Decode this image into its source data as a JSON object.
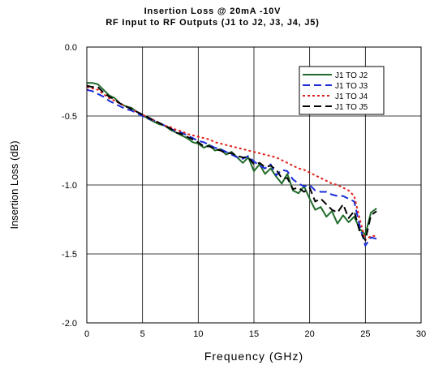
{
  "chart_data": {
    "type": "line",
    "title": "Insertion Loss @ 20mA -10V",
    "subtitle": "RF Input to RF Outputs (J1 to J2, J3, J4, J5)",
    "xlabel": "Frequency (GHz)",
    "ylabel": "Insertion Loss (dB)",
    "xlim": [
      0,
      30
    ],
    "ylim": [
      -2.0,
      0.0
    ],
    "xticks": [
      "0",
      "5",
      "10",
      "15",
      "20",
      "25",
      "30"
    ],
    "yticks": [
      "0.0",
      "-0.5",
      "-1.0",
      "-1.5",
      "-2.0"
    ],
    "grid": true,
    "legend_position": "top-right",
    "series": [
      {
        "name": "J1 TO J2",
        "color": "#1f6b2a",
        "style": "solid",
        "x": [
          0,
          0.5,
          1,
          1.5,
          2,
          2.5,
          3,
          3.5,
          4,
          4.5,
          5,
          5.5,
          6,
          6.5,
          7,
          7.5,
          8,
          8.5,
          9,
          9.5,
          10,
          10.5,
          11,
          11.5,
          12,
          12.5,
          13,
          13.5,
          14,
          14.5,
          15,
          15.5,
          16,
          16.5,
          17,
          17.5,
          18,
          18.5,
          19,
          19.5,
          20,
          20.5,
          21,
          21.5,
          22,
          22.5,
          23,
          23.5,
          24,
          24.5,
          25,
          25.5,
          26
        ],
        "y": [
          -0.26,
          -0.26,
          -0.27,
          -0.31,
          -0.35,
          -0.37,
          -0.41,
          -0.43,
          -0.44,
          -0.47,
          -0.49,
          -0.52,
          -0.54,
          -0.56,
          -0.57,
          -0.6,
          -0.62,
          -0.64,
          -0.66,
          -0.69,
          -0.7,
          -0.73,
          -0.71,
          -0.75,
          -0.74,
          -0.78,
          -0.76,
          -0.8,
          -0.84,
          -0.8,
          -0.9,
          -0.85,
          -0.92,
          -0.88,
          -0.94,
          -0.99,
          -0.92,
          -1.04,
          -1.06,
          -1.01,
          -1.1,
          -1.18,
          -1.16,
          -1.23,
          -1.19,
          -1.28,
          -1.22,
          -1.27,
          -1.23,
          -1.32,
          -1.36,
          -1.2,
          -1.17
        ]
      },
      {
        "name": "J1 TO J3",
        "color": "#1a2bd8",
        "style": "dash",
        "x": [
          0,
          0.5,
          1,
          1.5,
          2,
          2.5,
          3,
          3.5,
          4,
          4.5,
          5,
          5.5,
          6,
          6.5,
          7,
          7.5,
          8,
          8.5,
          9,
          9.5,
          10,
          10.5,
          11,
          11.5,
          12,
          12.5,
          13,
          13.5,
          14,
          14.5,
          15,
          15.5,
          16,
          16.5,
          17,
          17.5,
          18,
          18.5,
          19,
          19.5,
          20,
          20.5,
          21,
          21.5,
          22,
          22.5,
          23,
          23.5,
          24,
          24.5,
          25,
          25.5,
          26
        ],
        "y": [
          -0.31,
          -0.32,
          -0.34,
          -0.36,
          -0.39,
          -0.41,
          -0.43,
          -0.45,
          -0.46,
          -0.48,
          -0.5,
          -0.52,
          -0.53,
          -0.55,
          -0.57,
          -0.59,
          -0.61,
          -0.62,
          -0.64,
          -0.66,
          -0.68,
          -0.69,
          -0.71,
          -0.73,
          -0.74,
          -0.76,
          -0.78,
          -0.8,
          -0.81,
          -0.79,
          -0.83,
          -0.86,
          -0.88,
          -0.85,
          -0.93,
          -0.89,
          -0.9,
          -0.96,
          -0.99,
          -1.01,
          -1.0,
          -1.04,
          -1.05,
          -1.05,
          -1.07,
          -1.08,
          -1.08,
          -1.1,
          -1.12,
          -1.3,
          -1.44,
          -1.38,
          -1.39
        ]
      },
      {
        "name": "J1 TO J4",
        "color": "#e0201b",
        "style": "dot",
        "x": [
          0,
          0.5,
          1,
          1.5,
          2,
          2.5,
          3,
          3.5,
          4,
          4.5,
          5,
          5.5,
          6,
          6.5,
          7,
          7.5,
          8,
          8.5,
          9,
          9.5,
          10,
          10.5,
          11,
          11.5,
          12,
          12.5,
          13,
          13.5,
          14,
          14.5,
          15,
          15.5,
          16,
          16.5,
          17,
          17.5,
          18,
          18.5,
          19,
          19.5,
          20,
          20.5,
          21,
          21.5,
          22,
          22.5,
          23,
          23.5,
          24,
          24.5,
          25,
          25.5,
          26
        ],
        "y": [
          -0.29,
          -0.3,
          -0.31,
          -0.34,
          -0.37,
          -0.39,
          -0.41,
          -0.43,
          -0.45,
          -0.47,
          -0.49,
          -0.51,
          -0.53,
          -0.55,
          -0.57,
          -0.58,
          -0.6,
          -0.61,
          -0.63,
          -0.64,
          -0.65,
          -0.66,
          -0.67,
          -0.69,
          -0.7,
          -0.71,
          -0.72,
          -0.73,
          -0.74,
          -0.75,
          -0.76,
          -0.77,
          -0.78,
          -0.79,
          -0.8,
          -0.82,
          -0.84,
          -0.86,
          -0.88,
          -0.89,
          -0.91,
          -0.93,
          -0.95,
          -0.97,
          -0.99,
          -1.0,
          -1.02,
          -1.04,
          -1.08,
          -1.25,
          -1.4,
          -1.37,
          -1.37
        ]
      },
      {
        "name": "J1 TO J5",
        "color": "#000000",
        "style": "dash",
        "x": [
          0,
          0.5,
          1,
          1.5,
          2,
          2.5,
          3,
          3.5,
          4,
          4.5,
          5,
          5.5,
          6,
          6.5,
          7,
          7.5,
          8,
          8.5,
          9,
          9.5,
          10,
          10.5,
          11,
          11.5,
          12,
          12.5,
          13,
          13.5,
          14,
          14.5,
          15,
          15.5,
          16,
          16.5,
          17,
          17.5,
          18,
          18.5,
          19,
          19.5,
          20,
          20.5,
          21,
          21.5,
          22,
          22.5,
          23,
          23.5,
          24,
          24.5,
          25,
          25.5,
          26
        ],
        "y": [
          -0.28,
          -0.29,
          -0.29,
          -0.33,
          -0.36,
          -0.38,
          -0.41,
          -0.43,
          -0.45,
          -0.47,
          -0.49,
          -0.51,
          -0.53,
          -0.55,
          -0.57,
          -0.59,
          -0.62,
          -0.63,
          -0.65,
          -0.67,
          -0.69,
          -0.72,
          -0.72,
          -0.74,
          -0.75,
          -0.77,
          -0.77,
          -0.79,
          -0.8,
          -0.8,
          -0.85,
          -0.84,
          -0.87,
          -0.86,
          -0.89,
          -0.95,
          -0.95,
          -1.03,
          -1.02,
          -1.05,
          -1.02,
          -1.12,
          -1.1,
          -1.14,
          -1.18,
          -1.2,
          -1.14,
          -1.24,
          -1.19,
          -1.34,
          -1.4,
          -1.22,
          -1.19
        ]
      }
    ]
  }
}
